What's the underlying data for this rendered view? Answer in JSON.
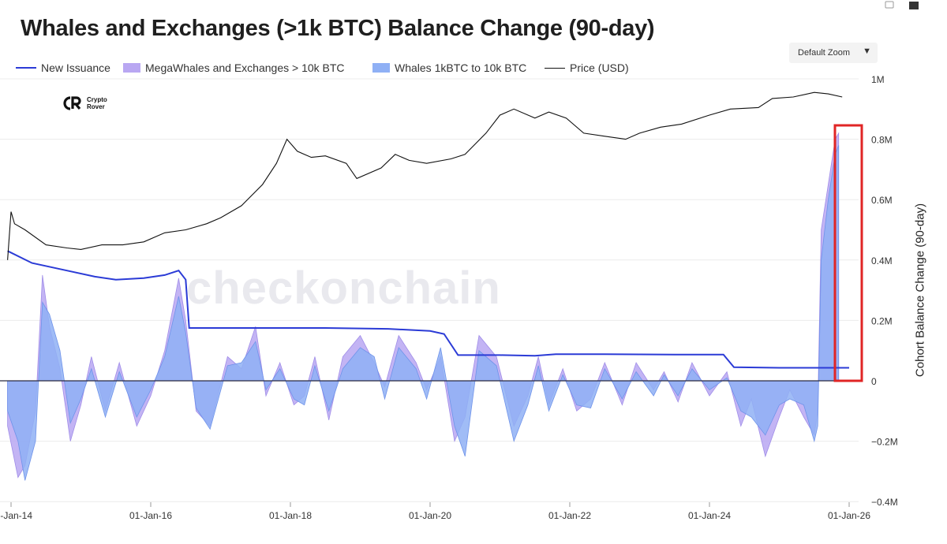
{
  "title": "Whales and Exchanges (>1k BTC) Balance Change (90-day)",
  "zoom": {
    "label": "Default Zoom",
    "arrow": "▼"
  },
  "logo": {
    "mark": "CR",
    "line1": "Crypto",
    "line2": "Rover"
  },
  "watermark": "checkonchain",
  "colors": {
    "new_issuance": "#2b3bd6",
    "megawhales": "#b9a7f2",
    "whales": "#8fb0f5",
    "price": "#111111",
    "highlight": "#e02525"
  },
  "chart_data": {
    "type": "area",
    "title": "Whales and Exchanges (>1k BTC) Balance Change (90-day)",
    "ylabel": "Cohort Balance Change (90-day)",
    "ylim": [
      -400000,
      1000000
    ],
    "yticks": [
      "1M",
      "0.8M",
      "0.6M",
      "0.4M",
      "0.2M",
      "0",
      "−0.2M",
      "−0.4M"
    ],
    "ytick_values": [
      1000000,
      800000,
      600000,
      400000,
      200000,
      0,
      -200000,
      -400000
    ],
    "xticks": [
      "01-Jan-14",
      "01-Jan-16",
      "01-Jan-18",
      "01-Jan-20",
      "01-Jan-22",
      "01-Jan-24",
      "01-Jan-26"
    ],
    "xtick_years": [
      2014,
      2016,
      2018,
      2020,
      2022,
      2024,
      2026
    ],
    "xlim": [
      2014.0,
      2026.0
    ],
    "legend": [
      "New Issuance",
      "MegaWhales and Exchanges > 10k BTC",
      "Whales 1kBTC to 10k BTC",
      "Price (USD)"
    ],
    "legend_position": "top",
    "highlight": "latest surge (late 2025 to Jan 2026)",
    "series": [
      {
        "name": "New Issuance",
        "type": "line",
        "points": [
          [
            2013.95,
            430000
          ],
          [
            2014.3,
            390000
          ],
          [
            2014.8,
            365000
          ],
          [
            2015.2,
            345000
          ],
          [
            2015.5,
            335000
          ],
          [
            2015.9,
            340000
          ],
          [
            2016.2,
            350000
          ],
          [
            2016.4,
            365000
          ],
          [
            2016.5,
            335000
          ],
          [
            2016.55,
            175000
          ],
          [
            2017.5,
            175000
          ],
          [
            2018.5,
            175000
          ],
          [
            2019.4,
            172000
          ],
          [
            2020.0,
            165000
          ],
          [
            2020.2,
            155000
          ],
          [
            2020.4,
            85000
          ],
          [
            2021.0,
            85000
          ],
          [
            2021.5,
            83000
          ],
          [
            2021.8,
            88000
          ],
          [
            2022.5,
            88000
          ],
          [
            2023.5,
            87000
          ],
          [
            2024.2,
            87000
          ],
          [
            2024.35,
            45000
          ],
          [
            2025.0,
            43000
          ],
          [
            2026.0,
            43000
          ]
        ]
      },
      {
        "name": "MegaWhales and Exchanges > 10k BTC",
        "type": "area",
        "points": [
          [
            2013.95,
            -150000
          ],
          [
            2014.1,
            -320000
          ],
          [
            2014.2,
            -280000
          ],
          [
            2014.35,
            -100000
          ],
          [
            2014.45,
            350000
          ],
          [
            2014.55,
            180000
          ],
          [
            2014.7,
            40000
          ],
          [
            2014.85,
            -200000
          ],
          [
            2015.0,
            -80000
          ],
          [
            2015.15,
            80000
          ],
          [
            2015.35,
            -100000
          ],
          [
            2015.55,
            60000
          ],
          [
            2015.8,
            -150000
          ],
          [
            2016.0,
            -50000
          ],
          [
            2016.2,
            100000
          ],
          [
            2016.4,
            340000
          ],
          [
            2016.5,
            200000
          ],
          [
            2016.65,
            -100000
          ],
          [
            2016.85,
            -150000
          ],
          [
            2017.1,
            80000
          ],
          [
            2017.3,
            40000
          ],
          [
            2017.5,
            180000
          ],
          [
            2017.65,
            -50000
          ],
          [
            2017.85,
            60000
          ],
          [
            2018.05,
            -80000
          ],
          [
            2018.2,
            -50000
          ],
          [
            2018.35,
            80000
          ],
          [
            2018.55,
            -130000
          ],
          [
            2018.75,
            80000
          ],
          [
            2019.0,
            150000
          ],
          [
            2019.2,
            60000
          ],
          [
            2019.35,
            -20000
          ],
          [
            2019.55,
            150000
          ],
          [
            2019.8,
            60000
          ],
          [
            2019.95,
            -30000
          ],
          [
            2020.15,
            80000
          ],
          [
            2020.35,
            -200000
          ],
          [
            2020.5,
            -120000
          ],
          [
            2020.7,
            150000
          ],
          [
            2020.95,
            80000
          ],
          [
            2021.2,
            -150000
          ],
          [
            2021.4,
            -50000
          ],
          [
            2021.55,
            80000
          ],
          [
            2021.7,
            -80000
          ],
          [
            2021.9,
            40000
          ],
          [
            2022.1,
            -100000
          ],
          [
            2022.3,
            -60000
          ],
          [
            2022.5,
            60000
          ],
          [
            2022.75,
            -80000
          ],
          [
            2022.95,
            60000
          ],
          [
            2023.2,
            -30000
          ],
          [
            2023.35,
            30000
          ],
          [
            2023.55,
            -70000
          ],
          [
            2023.75,
            60000
          ],
          [
            2024.0,
            -50000
          ],
          [
            2024.25,
            30000
          ],
          [
            2024.45,
            -150000
          ],
          [
            2024.6,
            -60000
          ],
          [
            2024.8,
            -250000
          ],
          [
            2025.0,
            -120000
          ],
          [
            2025.15,
            -30000
          ],
          [
            2025.35,
            -120000
          ],
          [
            2025.5,
            -180000
          ],
          [
            2025.55,
            -100000
          ],
          [
            2025.6,
            500000
          ],
          [
            2025.7,
            650000
          ],
          [
            2025.8,
            800000
          ],
          [
            2025.85,
            820000
          ]
        ]
      },
      {
        "name": "Whales 1kBTC to 10k BTC",
        "type": "area",
        "points": [
          [
            2013.95,
            -100000
          ],
          [
            2014.1,
            -200000
          ],
          [
            2014.2,
            -330000
          ],
          [
            2014.35,
            -200000
          ],
          [
            2014.45,
            260000
          ],
          [
            2014.55,
            220000
          ],
          [
            2014.7,
            100000
          ],
          [
            2014.85,
            -140000
          ],
          [
            2015.0,
            -60000
          ],
          [
            2015.15,
            40000
          ],
          [
            2015.35,
            -120000
          ],
          [
            2015.55,
            30000
          ],
          [
            2015.8,
            -120000
          ],
          [
            2016.0,
            -30000
          ],
          [
            2016.2,
            80000
          ],
          [
            2016.4,
            280000
          ],
          [
            2016.5,
            160000
          ],
          [
            2016.65,
            -90000
          ],
          [
            2016.85,
            -160000
          ],
          [
            2017.1,
            50000
          ],
          [
            2017.3,
            60000
          ],
          [
            2017.5,
            130000
          ],
          [
            2017.65,
            -30000
          ],
          [
            2017.85,
            40000
          ],
          [
            2018.05,
            -60000
          ],
          [
            2018.2,
            -80000
          ],
          [
            2018.35,
            50000
          ],
          [
            2018.55,
            -100000
          ],
          [
            2018.75,
            40000
          ],
          [
            2019.0,
            110000
          ],
          [
            2019.2,
            80000
          ],
          [
            2019.35,
            -60000
          ],
          [
            2019.55,
            110000
          ],
          [
            2019.8,
            40000
          ],
          [
            2019.95,
            -60000
          ],
          [
            2020.15,
            110000
          ],
          [
            2020.35,
            -150000
          ],
          [
            2020.5,
            -250000
          ],
          [
            2020.7,
            100000
          ],
          [
            2020.95,
            50000
          ],
          [
            2021.2,
            -200000
          ],
          [
            2021.4,
            -80000
          ],
          [
            2021.55,
            50000
          ],
          [
            2021.7,
            -100000
          ],
          [
            2021.9,
            20000
          ],
          [
            2022.1,
            -80000
          ],
          [
            2022.3,
            -90000
          ],
          [
            2022.5,
            40000
          ],
          [
            2022.75,
            -60000
          ],
          [
            2022.95,
            30000
          ],
          [
            2023.2,
            -50000
          ],
          [
            2023.35,
            20000
          ],
          [
            2023.55,
            -50000
          ],
          [
            2023.75,
            40000
          ],
          [
            2024.0,
            -30000
          ],
          [
            2024.25,
            10000
          ],
          [
            2024.45,
            -100000
          ],
          [
            2024.6,
            -120000
          ],
          [
            2024.8,
            -180000
          ],
          [
            2025.0,
            -80000
          ],
          [
            2025.15,
            -60000
          ],
          [
            2025.35,
            -80000
          ],
          [
            2025.5,
            -200000
          ],
          [
            2025.55,
            -150000
          ],
          [
            2025.6,
            400000
          ],
          [
            2025.7,
            600000
          ],
          [
            2025.8,
            750000
          ],
          [
            2025.85,
            780000
          ]
        ]
      },
      {
        "name": "Price (USD)",
        "type": "line",
        "points": [
          [
            2013.95,
            400000
          ],
          [
            2014.0,
            560000
          ],
          [
            2014.05,
            520000
          ],
          [
            2014.2,
            500000
          ],
          [
            2014.5,
            450000
          ],
          [
            2014.8,
            440000
          ],
          [
            2015.0,
            435000
          ],
          [
            2015.3,
            450000
          ],
          [
            2015.6,
            450000
          ],
          [
            2015.9,
            460000
          ],
          [
            2016.2,
            490000
          ],
          [
            2016.5,
            500000
          ],
          [
            2016.8,
            520000
          ],
          [
            2017.0,
            540000
          ],
          [
            2017.3,
            580000
          ],
          [
            2017.6,
            650000
          ],
          [
            2017.8,
            720000
          ],
          [
            2017.95,
            800000
          ],
          [
            2018.1,
            760000
          ],
          [
            2018.3,
            740000
          ],
          [
            2018.5,
            745000
          ],
          [
            2018.8,
            720000
          ],
          [
            2018.95,
            670000
          ],
          [
            2019.3,
            705000
          ],
          [
            2019.5,
            750000
          ],
          [
            2019.7,
            730000
          ],
          [
            2019.95,
            720000
          ],
          [
            2020.3,
            735000
          ],
          [
            2020.5,
            750000
          ],
          [
            2020.8,
            820000
          ],
          [
            2021.0,
            880000
          ],
          [
            2021.2,
            900000
          ],
          [
            2021.5,
            870000
          ],
          [
            2021.7,
            890000
          ],
          [
            2021.95,
            870000
          ],
          [
            2022.2,
            820000
          ],
          [
            2022.5,
            810000
          ],
          [
            2022.8,
            800000
          ],
          [
            2023.0,
            820000
          ],
          [
            2023.3,
            840000
          ],
          [
            2023.6,
            850000
          ],
          [
            2024.0,
            880000
          ],
          [
            2024.3,
            900000
          ],
          [
            2024.7,
            905000
          ],
          [
            2024.9,
            935000
          ],
          [
            2025.2,
            940000
          ],
          [
            2025.5,
            955000
          ],
          [
            2025.7,
            950000
          ],
          [
            2025.9,
            940000
          ]
        ]
      }
    ]
  }
}
